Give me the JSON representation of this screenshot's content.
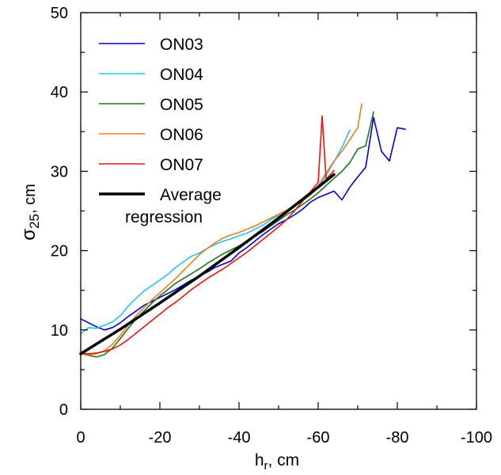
{
  "chart_data": {
    "type": "line",
    "xlabel": {
      "main": "h",
      "sub": "r",
      "suffix": ", cm"
    },
    "ylabel": {
      "main": "σ",
      "sub": "25",
      "suffix": ", cm"
    },
    "xlim": [
      0,
      -100
    ],
    "ylim": [
      0,
      50
    ],
    "xticks": [
      0,
      -20,
      -40,
      -60,
      -80,
      -100
    ],
    "xtick_labels": [
      "0",
      "-20",
      "-40",
      "-60",
      "-80",
      "-100"
    ],
    "yticks": [
      0,
      10,
      20,
      30,
      40,
      50
    ],
    "ytick_labels": [
      "0",
      "10",
      "20",
      "30",
      "40",
      "50"
    ],
    "legend_position": "top-left",
    "series": [
      {
        "name": "ON03",
        "color": "#0000dd",
        "x": [
          0,
          -2,
          -4,
          -6,
          -8,
          -10,
          -12,
          -14,
          -16,
          -18,
          -20,
          -22,
          -24,
          -26,
          -28,
          -30,
          -32,
          -34,
          -36,
          -38,
          -40,
          -42,
          -44,
          -46,
          -48,
          -50,
          -52,
          -54,
          -56,
          -58,
          -60,
          -62,
          -64,
          -66,
          -68,
          -70,
          -72,
          -74,
          -76,
          -78,
          -80,
          -82
        ],
        "y": [
          11.4,
          10.9,
          10.4,
          10.0,
          10.3,
          10.9,
          11.7,
          12.4,
          13.1,
          13.6,
          14.1,
          14.6,
          15.1,
          15.7,
          16.3,
          16.8,
          17.3,
          17.9,
          18.3,
          18.7,
          19.7,
          20.4,
          21.2,
          22.0,
          22.7,
          23.4,
          23.9,
          24.5,
          25.2,
          26.1,
          26.7,
          27.1,
          27.5,
          26.4,
          28.0,
          29.3,
          30.5,
          36.8,
          32.5,
          31.3,
          35.5,
          35.3
        ]
      },
      {
        "name": "ON04",
        "color": "#22c4f0",
        "x": [
          0,
          -2,
          -4,
          -6,
          -8,
          -10,
          -12,
          -14,
          -16,
          -18,
          -20,
          -22,
          -24,
          -26,
          -28,
          -30,
          -32,
          -34,
          -36,
          -38,
          -40,
          -42,
          -44,
          -46,
          -48,
          -50,
          -52,
          -54,
          -56,
          -58,
          -60,
          -62,
          -64,
          -66,
          -68
        ],
        "y": [
          9.5,
          10.3,
          10.2,
          10.6,
          11.0,
          11.8,
          13.0,
          14.0,
          14.9,
          15.6,
          16.3,
          17.0,
          17.9,
          18.6,
          19.3,
          19.7,
          20.3,
          20.8,
          21.2,
          21.5,
          21.9,
          22.2,
          22.7,
          23.2,
          23.9,
          24.4,
          24.9,
          25.6,
          26.3,
          27.0,
          28.0,
          29.5,
          31.2,
          33.0,
          35.2
        ]
      },
      {
        "name": "ON05",
        "color": "#1a7a1a",
        "x": [
          0,
          -2,
          -4,
          -6,
          -8,
          -10,
          -12,
          -14,
          -16,
          -18,
          -20,
          -22,
          -24,
          -26,
          -28,
          -30,
          -32,
          -34,
          -36,
          -38,
          -40,
          -42,
          -44,
          -46,
          -48,
          -50,
          -52,
          -54,
          -56,
          -58,
          -60,
          -62,
          -64,
          -66,
          -68,
          -70,
          -72,
          -74
        ],
        "y": [
          7.0,
          6.8,
          6.6,
          6.9,
          7.7,
          8.9,
          10.2,
          11.4,
          12.4,
          13.4,
          14.3,
          15.1,
          15.9,
          16.5,
          17.1,
          17.7,
          18.4,
          19.0,
          19.6,
          20.1,
          20.6,
          21.2,
          21.8,
          22.4,
          23.1,
          23.8,
          24.5,
          25.1,
          25.8,
          26.5,
          27.3,
          28.2,
          29.1,
          30.0,
          31.1,
          32.8,
          33.2,
          37.5
        ]
      },
      {
        "name": "ON06",
        "color": "#f07d1a",
        "x": [
          0,
          -2,
          -4,
          -6,
          -8,
          -10,
          -12,
          -14,
          -16,
          -18,
          -20,
          -22,
          -24,
          -26,
          -28,
          -30,
          -32,
          -34,
          -36,
          -38,
          -40,
          -42,
          -44,
          -46,
          -48,
          -50,
          -52,
          -54,
          -56,
          -58,
          -60,
          -62,
          -64,
          -66,
          -68,
          -70,
          -71
        ],
        "y": [
          7.0,
          6.9,
          7.0,
          7.4,
          8.2,
          9.3,
          10.6,
          11.8,
          12.8,
          13.8,
          14.7,
          15.6,
          16.5,
          17.5,
          18.5,
          19.5,
          20.3,
          21.0,
          21.6,
          22.0,
          22.3,
          22.7,
          23.1,
          23.6,
          24.1,
          24.6,
          25.1,
          25.7,
          26.3,
          27.0,
          28.1,
          29.8,
          31.3,
          32.5,
          34.0,
          35.5,
          38.5
        ]
      },
      {
        "name": "ON07",
        "color": "#ee1111",
        "x": [
          0,
          -2,
          -4,
          -6,
          -8,
          -10,
          -12,
          -14,
          -16,
          -18,
          -20,
          -22,
          -24,
          -26,
          -28,
          -30,
          -32,
          -34,
          -36,
          -38,
          -40,
          -42,
          -44,
          -46,
          -48,
          -50,
          -52,
          -54,
          -56,
          -58,
          -60,
          -61,
          -62,
          -64
        ],
        "y": [
          7.1,
          7.0,
          7.1,
          7.3,
          7.6,
          8.1,
          8.8,
          9.6,
          10.4,
          11.2,
          12.0,
          12.8,
          13.5,
          14.3,
          15.1,
          15.8,
          16.5,
          17.1,
          17.7,
          18.4,
          19.1,
          19.8,
          20.6,
          21.4,
          22.2,
          23.0,
          23.9,
          25.0,
          26.2,
          27.4,
          28.6,
          37.0,
          29.0,
          30.1
        ]
      },
      {
        "name": "Average regression",
        "legend_lines": [
          "Average",
          "regression"
        ],
        "color": "#000000",
        "x": [
          0,
          -10,
          -20,
          -30,
          -40,
          -50,
          -60,
          -64
        ],
        "y": [
          7.0,
          10.1,
          13.4,
          16.8,
          20.4,
          24.1,
          28.0,
          29.6
        ]
      }
    ]
  }
}
